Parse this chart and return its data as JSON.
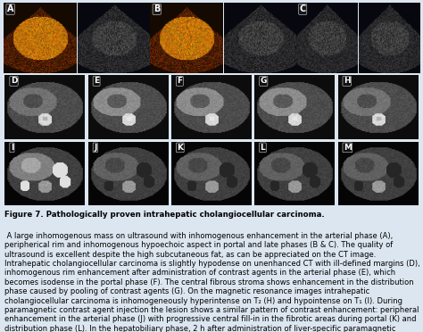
{
  "figure_title": "Figure 7. Pathologically proven intrahepatic cholangiocellular carcinoma.",
  "caption_body": " A large inhomogenous mass on ultrasound with inhomogenous enhancement in the arterial phase (",
  "caption_full": " A large inhomogenous mass on ultrasound with inhomogenous enhancement in the arterial phase (A), peripherical rim and inhomogenous hypoechoic aspect in portal and late phases (B & C). The quality of ultrasound is excellent despite the high subcutaneous fat, as can be appreciated on the CT image. Intrahepatic cholangiocellular carcinoma is slightly hypodense on unenhanced CT with ill-defined margins (D), inhomogenous rim enhancement after administration of contrast agents in the arterial phase (E), which becomes isodense in the portal phase (F). The central fibrous stroma shows enhancement in the distribution phase caused by pooling of contrast agents (G). On the magnetic resonance images intrahepatic cholangiocellular carcinoma is inhomogeneously hyperintense on T₂ (H) and hypointense on T₁ (I). During paramagnetic contrast agent injection the lesion shows a similar pattern of contrast enhancement: peripheral enhancement in the arterial phase (J) with progressive central fill-in in the fibrotic areas during portal (K) and distribution phase (L). In the hepatobiliary phase, 2 h after administration of liver-specific paramagnetic contrast agents (MultiHance®, Bracco SpA, Milan, Italy), the periphery of the lesion is hypointense (M), while the central fibrotic areas still show contrast uptake caused by pooling.",
  "background_color": "#dce6f0",
  "panel_border_color": "#aabbcc",
  "labels_row1": [
    "A",
    "B",
    "C"
  ],
  "labels_row2": [
    "D",
    "E",
    "F",
    "G",
    "H"
  ],
  "labels_row3": [
    "I",
    "J",
    "K",
    "L",
    "M"
  ],
  "caption_fontsize": 6.2,
  "figsize": [
    4.74,
    3.72
  ],
  "dpi": 100
}
